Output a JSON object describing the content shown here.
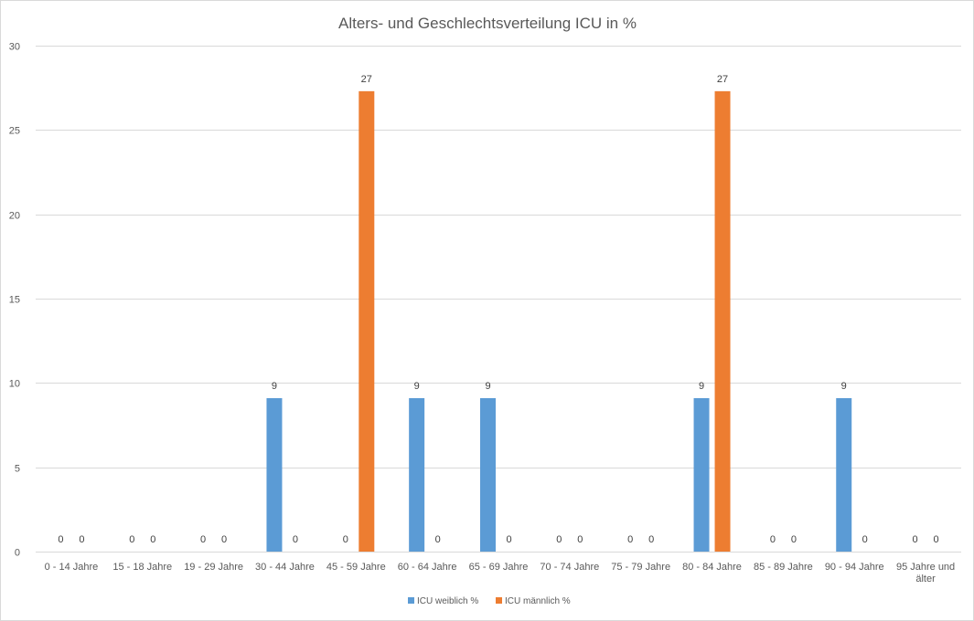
{
  "chart_data": {
    "type": "bar",
    "title": "Alters- und Geschlechtsverteilung ICU in %",
    "xlabel": "",
    "ylabel": "",
    "ylim": [
      0,
      30
    ],
    "yticks": [
      0,
      5,
      10,
      15,
      20,
      25,
      30
    ],
    "grid": true,
    "legend_position": "bottom",
    "categories": [
      "0 - 14 Jahre",
      "15 - 18 Jahre",
      "19 - 29 Jahre",
      "30 - 44 Jahre",
      "45 - 59 Jahre",
      "60 - 64 Jahre",
      "65 - 69 Jahre",
      "70 - 74 Jahre",
      "75 - 79 Jahre",
      "80 - 84 Jahre",
      "85 - 89 Jahre",
      "90 - 94 Jahre",
      "95 Jahre und älter"
    ],
    "series": [
      {
        "name": "ICU weiblich %",
        "color": "#5b9bd5",
        "values": [
          0,
          0,
          0,
          9.1,
          0,
          9.1,
          9.1,
          0,
          0,
          9.1,
          0,
          9.1,
          0
        ],
        "labels": [
          "0",
          "0",
          "0",
          "9",
          "0",
          "9",
          "9",
          "0",
          "0",
          "9",
          "0",
          "9",
          "0"
        ]
      },
      {
        "name": "ICU männlich %",
        "color": "#ed7d31",
        "values": [
          0,
          0,
          0,
          0,
          27.3,
          0,
          0,
          0,
          0,
          27.3,
          0,
          0,
          0
        ],
        "labels": [
          "0",
          "0",
          "0",
          "0",
          "27",
          "0",
          "0",
          "0",
          "0",
          "27",
          "0",
          "0",
          "0"
        ]
      }
    ]
  }
}
